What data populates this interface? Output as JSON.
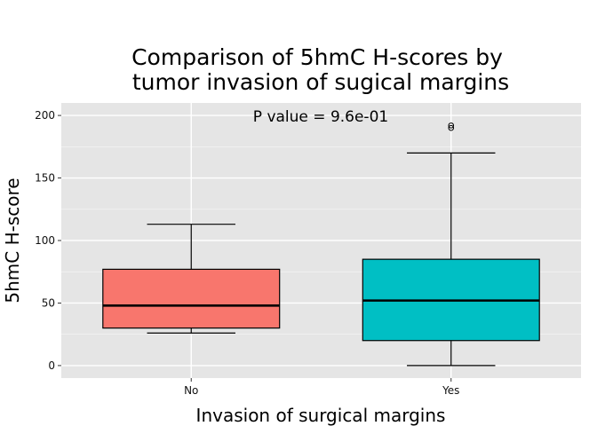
{
  "chart_data": {
    "type": "box",
    "title_lines": [
      "Comparison of 5hmC H-scores by",
      "tumor invasion of sugical margins"
    ],
    "xlabel": "Invasion of surgical margins",
    "ylabel": "5hmC H-score",
    "annotation": "P value = 9.6e-01",
    "categories": [
      "No",
      "Yes"
    ],
    "ylim": [
      -10,
      210
    ],
    "yticks": [
      0,
      50,
      100,
      150,
      200
    ],
    "grid": true,
    "boxes": [
      {
        "category": "No",
        "whisker_low": 26,
        "q1": 30,
        "median": 48,
        "q3": 77,
        "whisker_high": 113,
        "outliers": [],
        "color": "#F8766D"
      },
      {
        "category": "Yes",
        "whisker_low": 0,
        "q1": 20,
        "median": 52,
        "q3": 85,
        "whisker_high": 170,
        "outliers": [
          190,
          192
        ],
        "color": "#00BFC4"
      }
    ]
  },
  "colors": {
    "panel_background": "#E5E5E5",
    "grid": "#FFFFFF"
  }
}
